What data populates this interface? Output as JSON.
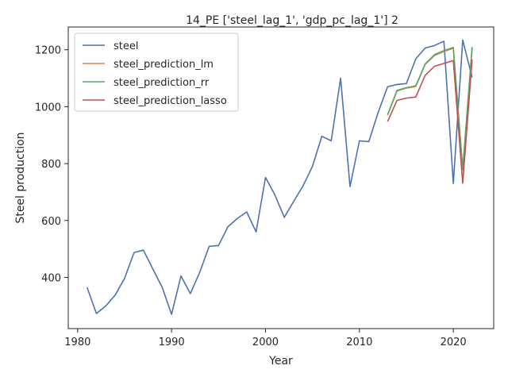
{
  "chart_data": {
    "type": "line",
    "title": "14_PE ['steel_lag_1', 'gdp_pc_lag_1'] 2",
    "xlabel": "Year",
    "ylabel": "Steel production",
    "xlim": [
      1979,
      2024.3
    ],
    "ylim": [
      220,
      1280
    ],
    "x_ticks": [
      1980,
      1990,
      2000,
      2010,
      2020
    ],
    "y_ticks": [
      400,
      600,
      800,
      1000,
      1200
    ],
    "grid": false,
    "legend_position": "upper-left",
    "series": [
      {
        "name": "steel",
        "color": "#4c72b0",
        "x": [
          1981,
          1982,
          1983,
          1984,
          1985,
          1986,
          1987,
          1988,
          1989,
          1990,
          1991,
          1992,
          1993,
          1994,
          1995,
          1996,
          1997,
          1998,
          1999,
          2000,
          2001,
          2002,
          2003,
          2004,
          2005,
          2006,
          2007,
          2008,
          2009,
          2010,
          2011,
          2012,
          2013,
          2014,
          2015,
          2016,
          2017,
          2018,
          2019,
          2020,
          2021,
          2022
        ],
        "y": [
          365,
          273,
          300,
          338,
          397,
          487,
          496,
          430,
          365,
          270,
          405,
          343,
          418,
          509,
          512,
          578,
          607,
          630,
          560,
          751,
          690,
          611,
          667,
          722,
          790,
          896,
          880,
          1100,
          719,
          880,
          877,
          980,
          1070,
          1078,
          1081,
          1168,
          1206,
          1215,
          1230,
          730,
          1234,
          1103
        ]
      },
      {
        "name": "steel_prediction_lm",
        "color": "#dd8452",
        "x": [
          2013,
          2014,
          2015,
          2016,
          2017,
          2018,
          2019,
          2020,
          2021,
          2022
        ],
        "y": [
          970,
          1055,
          1065,
          1071,
          1148,
          1180,
          1194,
          1205,
          778,
          1205
        ]
      },
      {
        "name": "steel_prediction_rr",
        "color": "#55a868",
        "x": [
          2013,
          2014,
          2015,
          2016,
          2017,
          2018,
          2019,
          2020,
          2021,
          2022
        ],
        "y": [
          972,
          1057,
          1067,
          1073,
          1150,
          1183,
          1197,
          1208,
          780,
          1210
        ]
      },
      {
        "name": "steel_prediction_lasso",
        "color": "#c44e52",
        "x": [
          2013,
          2014,
          2015,
          2016,
          2017,
          2018,
          2019,
          2020,
          2021,
          2022
        ],
        "y": [
          948,
          1022,
          1030,
          1034,
          1110,
          1142,
          1152,
          1162,
          731,
          1166
        ]
      }
    ]
  }
}
